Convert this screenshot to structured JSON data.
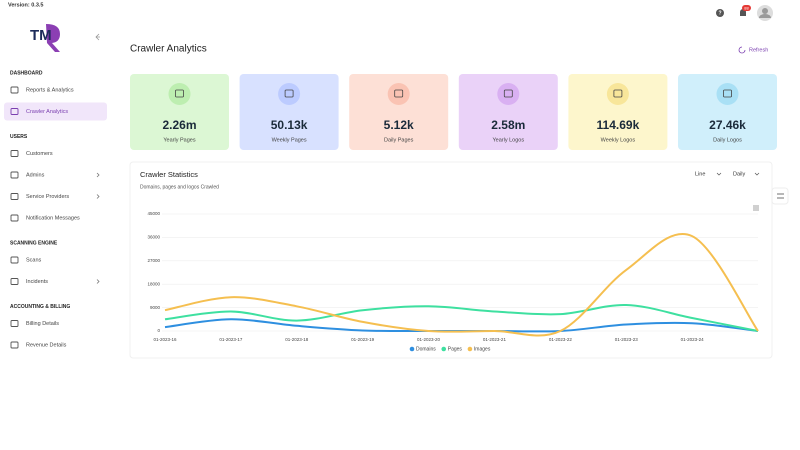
{
  "version": "Version: 0.3.5",
  "logo": "TM",
  "header": {
    "notifications": "88"
  },
  "sidebar": {
    "sections": [
      {
        "title": "DASHBOARD",
        "items": [
          {
            "label": "Reports & Analytics"
          },
          {
            "label": "Crawler Analytics",
            "active": true
          }
        ]
      },
      {
        "title": "USERS",
        "items": [
          {
            "label": "Customers"
          },
          {
            "label": "Admins",
            "submenu": true
          },
          {
            "label": "Service Providers",
            "submenu": true
          },
          {
            "label": "Notification Messages"
          }
        ]
      },
      {
        "title": "SCANNING ENGINE",
        "items": [
          {
            "label": "Scans"
          },
          {
            "label": "Incidents",
            "submenu": true
          }
        ]
      },
      {
        "title": "ACCOUNTING & BILLING",
        "items": [
          {
            "label": "Billing Details"
          },
          {
            "label": "Revenue Details"
          }
        ]
      }
    ]
  },
  "page": {
    "title": "Crawler Analytics",
    "refresh": "Refresh"
  },
  "cards": [
    {
      "value": "2.26m",
      "label": "Yearly Pages",
      "color": "#dcf7d4",
      "accent": "#bdeeb0"
    },
    {
      "value": "50.13k",
      "label": "Weekly Pages",
      "color": "#d8e1ff",
      "accent": "#bccbff"
    },
    {
      "value": "5.12k",
      "label": "Daily Pages",
      "color": "#fde0d6",
      "accent": "#fac3b3"
    },
    {
      "value": "2.58m",
      "label": "Yearly Logos",
      "color": "#ead2f8",
      "accent": "#d9b0f2"
    },
    {
      "value": "114.69k",
      "label": "Weekly Logos",
      "color": "#fdf6cc",
      "accent": "#f8e69a"
    },
    {
      "value": "27.46k",
      "label": "Daily Logos",
      "color": "#d0effb",
      "accent": "#a9e0f5"
    }
  ],
  "chart_data": {
    "type": "line",
    "title": "Crawler Statistics",
    "subtitle": "Domains, pages and logos Crawled",
    "controls": [
      "Line",
      "Daily"
    ],
    "categories": [
      "01-2023-16",
      "01-2023-17",
      "01-2023-18",
      "01-2023-19",
      "01-2023-20",
      "01-2023-21",
      "01-2023-22",
      "01-2023-23",
      "01-2023-24",
      null
    ],
    "series": [
      {
        "name": "Domains",
        "color": "#2e8fe0",
        "values": [
          1500,
          4500,
          2000,
          200,
          0,
          0,
          0,
          2500,
          3000,
          0
        ]
      },
      {
        "name": "Pages",
        "color": "#3ee0a0",
        "values": [
          4500,
          7500,
          4000,
          8000,
          9500,
          7500,
          6500,
          10000,
          5000,
          0
        ]
      },
      {
        "name": "Images",
        "color": "#f5bf50",
        "values": [
          8000,
          13000,
          9500,
          3500,
          0,
          0,
          0,
          23500,
          36500,
          0
        ]
      }
    ],
    "ylim": [
      0,
      45000
    ],
    "yticks": [
      0,
      9000,
      18000,
      27000,
      36000,
      45000
    ],
    "grid": true,
    "smooth": true,
    "legend": "bottom"
  }
}
